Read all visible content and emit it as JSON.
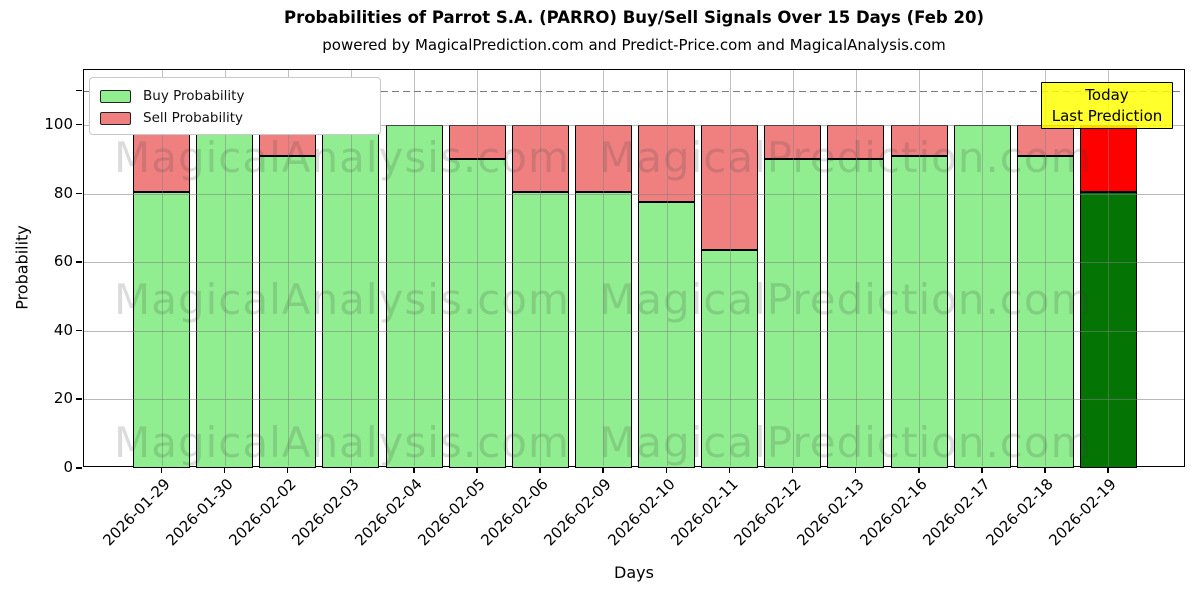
{
  "title": "Probabilities of Parrot S.A. (PARRO) Buy/Sell Signals Over 15 Days (Feb 20)",
  "subtitle": "powered by MagicalPrediction.com and Predict-Price.com and MagicalAnalysis.com",
  "legend": {
    "items": [
      {
        "label": "Buy Probability",
        "color": "#90ee90"
      },
      {
        "label": "Sell Probability",
        "color": "#f08080"
      }
    ]
  },
  "annotation": {
    "line1": "Today",
    "line2": "Last Prediction",
    "bg_color": "#ffff00"
  },
  "watermarks": {
    "left_text": "MagicalAnalysis.com",
    "right_text": "MagicalPrediction.com"
  },
  "axes": {
    "xlabel": "Days",
    "ylabel": "Probability",
    "yticks": [
      0,
      20,
      40,
      60,
      80,
      100
    ],
    "unlabeled_ytick": 110,
    "dashed_line_y": 110,
    "ymax": 116,
    "grid": true
  },
  "colors": {
    "buy": "#90ee90",
    "sell": "#f08080",
    "today_buy": "#047404",
    "today_sell": "#ff0000",
    "grid": "#b0b0b0",
    "dashed_line": "#7a7a7a"
  },
  "chart_data": {
    "type": "bar",
    "stacked": true,
    "title": "Probabilities of Parrot S.A. (PARRO) Buy/Sell Signals Over 15 Days (Feb 20)",
    "xlabel": "Days",
    "ylabel": "Probability",
    "ylim": [
      0,
      116
    ],
    "legend_position": "upper left",
    "categories": [
      "2026-01-29",
      "2026-01-30",
      "2026-02-02",
      "2026-02-03",
      "2026-02-04",
      "2026-02-05",
      "2026-02-06",
      "2026-02-09",
      "2026-02-10",
      "2026-02-11",
      "2026-02-12",
      "2026-02-13",
      "2026-02-16",
      "2026-02-17",
      "2026-02-18",
      "2026-02-19"
    ],
    "series": [
      {
        "name": "Buy Probability",
        "color": "#90ee90",
        "values": [
          80.5,
          100,
          91,
          100,
          100,
          90,
          80.5,
          80.5,
          77.5,
          63.5,
          90,
          90,
          91,
          100,
          91,
          80.5
        ]
      },
      {
        "name": "Sell Probability",
        "color": "#f08080",
        "values": [
          19.5,
          0,
          9,
          0,
          0,
          10,
          19.5,
          19.5,
          22.5,
          36.5,
          10,
          10,
          9,
          0,
          9,
          19.5
        ]
      }
    ],
    "highlight": {
      "index": 15,
      "buy_color": "#047404",
      "sell_color": "#ff0000",
      "label_line1": "Today",
      "label_line2": "Last Prediction"
    }
  }
}
